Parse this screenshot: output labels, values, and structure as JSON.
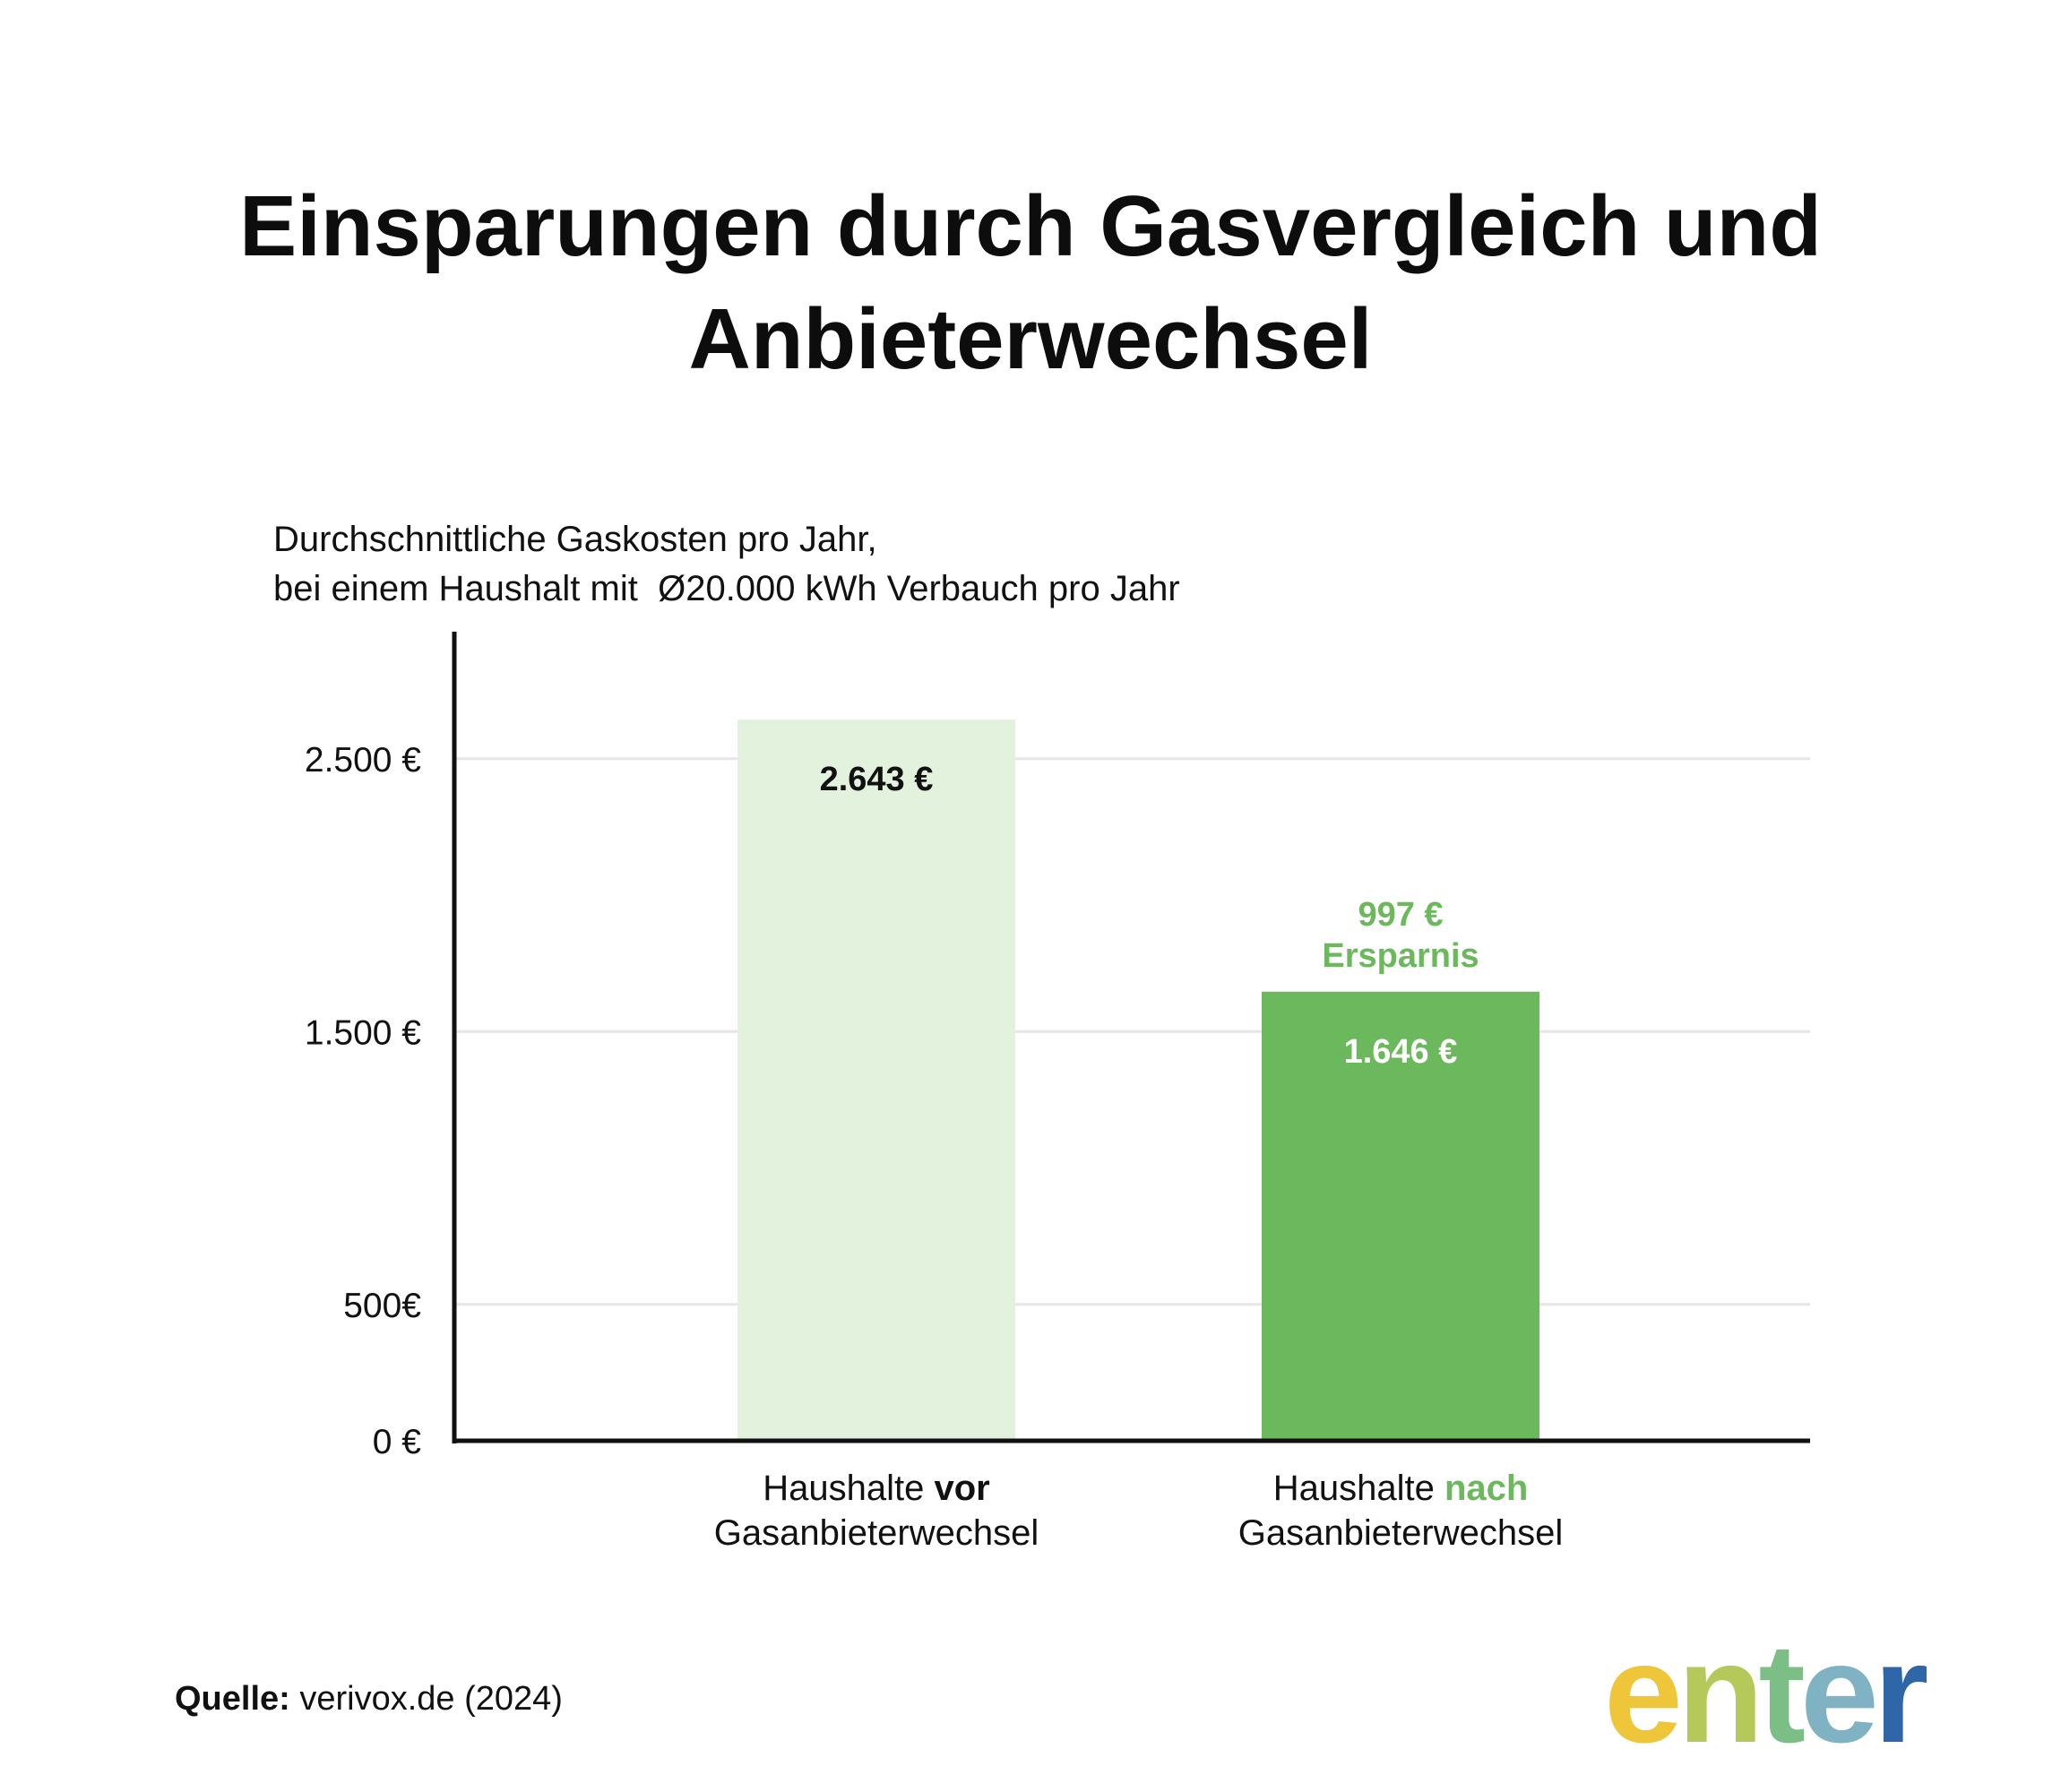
{
  "title": {
    "line1": "Einsparungen durch Gasvergleich und",
    "line2": "Anbieterwechsel"
  },
  "subtitle": {
    "line1": "Durchschnittliche Gaskosten pro Jahr,",
    "line2": "bei einem Haushalt mit  Ø20.000 kWh Verbauch pro Jahr"
  },
  "chart_data": {
    "type": "bar",
    "categories": [
      "Haushalte vor Gasanbieterwechsel",
      "Haushalte nach Gasanbieterwechsel"
    ],
    "values": [
      2643,
      1646
    ],
    "value_labels": [
      "2.643 €",
      "1.646 €"
    ],
    "ylim": [
      0,
      3000
    ],
    "ytick_values": [
      0,
      500,
      1500,
      2500
    ],
    "ytick_labels": [
      "0 €",
      "500€",
      "1.500 €",
      "2.500 €"
    ],
    "gridlines": true,
    "bar_colors": [
      "#e3f2dc",
      "#6cb85c"
    ],
    "value_label_colors": [
      "#111111",
      "#ffffff"
    ],
    "annotation": {
      "target_category": 1,
      "line1": "997 €",
      "line2": "Ersparnis",
      "color": "#6cb85c"
    }
  },
  "x_labels": [
    {
      "prefix": "Haushalte ",
      "emphasis": "vor",
      "line2": "Gasanbieterwechsel",
      "emphasis_color": "#111111"
    },
    {
      "prefix": "Haushalte ",
      "emphasis": "nach",
      "line2": "Gasanbieterwechsel",
      "emphasis_color": "#6cb85c"
    }
  ],
  "source": {
    "label": "Quelle:",
    "text": " verivox.de (2024)"
  },
  "logo": {
    "text": "enter",
    "colors": [
      "#efc53a",
      "#b5c95a",
      "#7bbf86",
      "#7fb3c4",
      "#2f66a8"
    ]
  }
}
